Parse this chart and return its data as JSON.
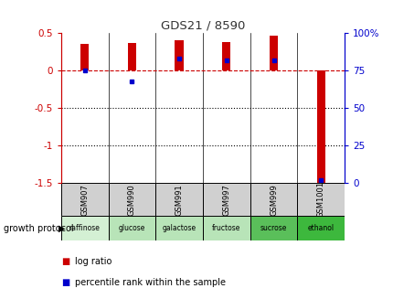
{
  "title": "GDS21 / 8590",
  "samples": [
    "GSM907",
    "GSM990",
    "GSM991",
    "GSM997",
    "GSM999",
    "GSM1001"
  ],
  "protocols": [
    "raffinose",
    "glucose",
    "galactose",
    "fructose",
    "sucrose",
    "ethanol"
  ],
  "protocol_colors": [
    "#d4f0d4",
    "#b8e4b8",
    "#b8e4b8",
    "#b8e4b8",
    "#5abf5a",
    "#3db83d"
  ],
  "log_ratio": [
    0.35,
    0.37,
    0.4,
    0.38,
    0.46,
    -1.56
  ],
  "percentile_rank": [
    75,
    68,
    83,
    82,
    82,
    2
  ],
  "ylim_left": [
    -1.5,
    0.5
  ],
  "ylim_right": [
    0,
    100
  ],
  "bar_color": "#cc0000",
  "pct_color": "#0000cc",
  "hline_color": "#cc0000",
  "dotline_values": [
    -0.5,
    -1.0
  ],
  "title_color": "#333333",
  "axis_left_color": "#cc0000",
  "axis_right_color": "#0000cc",
  "bar_width": 0.18
}
